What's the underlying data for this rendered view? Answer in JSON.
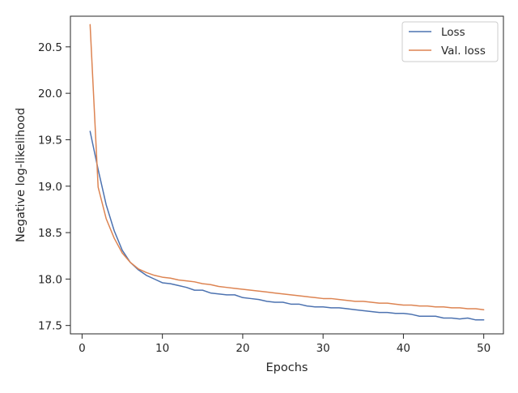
{
  "chart_data": {
    "type": "line",
    "title": "",
    "xlabel": "Epochs",
    "ylabel": "Negative log-likelihood",
    "xlim": [
      -1.45,
      52.45
    ],
    "ylim": [
      17.41,
      20.83
    ],
    "xticks": [
      0,
      10,
      20,
      30,
      40,
      50
    ],
    "xtick_labels": [
      "0",
      "10",
      "20",
      "30",
      "40",
      "50"
    ],
    "yticks": [
      17.5,
      18.0,
      18.5,
      19.0,
      19.5,
      20.0,
      20.5
    ],
    "ytick_labels": [
      "17.5",
      "18.0",
      "18.5",
      "19.0",
      "19.5",
      "20.0",
      "20.5"
    ],
    "grid": false,
    "legend_position": "top-right",
    "x": [
      1,
      2,
      3,
      4,
      5,
      6,
      7,
      8,
      9,
      10,
      11,
      12,
      13,
      14,
      15,
      16,
      17,
      18,
      19,
      20,
      21,
      22,
      23,
      24,
      25,
      26,
      27,
      28,
      29,
      30,
      31,
      32,
      33,
      34,
      35,
      36,
      37,
      38,
      39,
      40,
      41,
      42,
      43,
      44,
      45,
      46,
      47,
      48,
      49,
      50
    ],
    "series": [
      {
        "name": "Loss",
        "color": "#4c72b0",
        "values": [
          19.59,
          19.18,
          18.8,
          18.52,
          18.31,
          18.18,
          18.1,
          18.04,
          18.0,
          17.96,
          17.95,
          17.93,
          17.91,
          17.88,
          17.88,
          17.85,
          17.84,
          17.83,
          17.83,
          17.8,
          17.79,
          17.78,
          17.76,
          17.75,
          17.75,
          17.73,
          17.73,
          17.71,
          17.7,
          17.7,
          17.69,
          17.69,
          17.68,
          17.67,
          17.66,
          17.65,
          17.64,
          17.64,
          17.63,
          17.63,
          17.62,
          17.6,
          17.6,
          17.6,
          17.58,
          17.58,
          17.57,
          17.58,
          17.56,
          17.56
        ]
      },
      {
        "name": "Val. loss",
        "color": "#dd8452",
        "values": [
          20.74,
          18.99,
          18.65,
          18.44,
          18.28,
          18.18,
          18.11,
          18.07,
          18.04,
          18.02,
          18.01,
          17.99,
          17.98,
          17.97,
          17.95,
          17.94,
          17.92,
          17.91,
          17.9,
          17.89,
          17.88,
          17.87,
          17.86,
          17.85,
          17.84,
          17.83,
          17.82,
          17.81,
          17.8,
          17.79,
          17.79,
          17.78,
          17.77,
          17.76,
          17.76,
          17.75,
          17.74,
          17.74,
          17.73,
          17.72,
          17.72,
          17.71,
          17.71,
          17.7,
          17.7,
          17.69,
          17.69,
          17.68,
          17.68,
          17.67
        ]
      }
    ]
  }
}
